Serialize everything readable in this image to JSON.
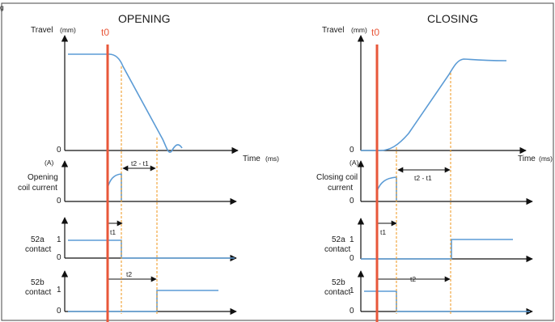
{
  "header": {
    "corner_fragment": "g"
  },
  "opening": {
    "title": "OPENING",
    "t0": "t0",
    "travel": {
      "label": "Travel",
      "unit": "(mm)",
      "zero": "0",
      "time_label": "Time",
      "time_unit": "(ms)"
    },
    "coil": {
      "unit": "(A)",
      "label_line1": "Opening",
      "label_line2": "coil current",
      "zero": "0",
      "interval": "t2 - t1"
    },
    "c52a": {
      "label_line1": "52a",
      "label_line2": "contact",
      "one": "1",
      "zero": "0",
      "interval": "t1"
    },
    "c52b": {
      "label_line1": "52b",
      "label_line2": "contact",
      "one": "1",
      "zero": "0",
      "interval": "t2"
    }
  },
  "closing": {
    "title": "CLOSING",
    "t0": "t0",
    "travel": {
      "label": "Travel",
      "unit": "(mm)",
      "zero": "0",
      "time_label": "Time",
      "time_unit": "(ms)"
    },
    "coil": {
      "unit": "(A)",
      "label_line1": "Closing coil",
      "label_line2": "current",
      "zero": "0",
      "interval": "t2 - t1"
    },
    "c52a": {
      "label_line1": "52a",
      "label_line2": "contact",
      "one": "1",
      "zero": "0",
      "interval": "t1"
    },
    "c52b": {
      "label_line1": "52b",
      "label_line2": "contact",
      "one": "1",
      "zero": "0",
      "interval": "t2"
    }
  },
  "colors": {
    "signal": "#5b9bd5",
    "t0_marker": "#e8573a",
    "guide": "#f0a030",
    "axis": "#111111"
  }
}
